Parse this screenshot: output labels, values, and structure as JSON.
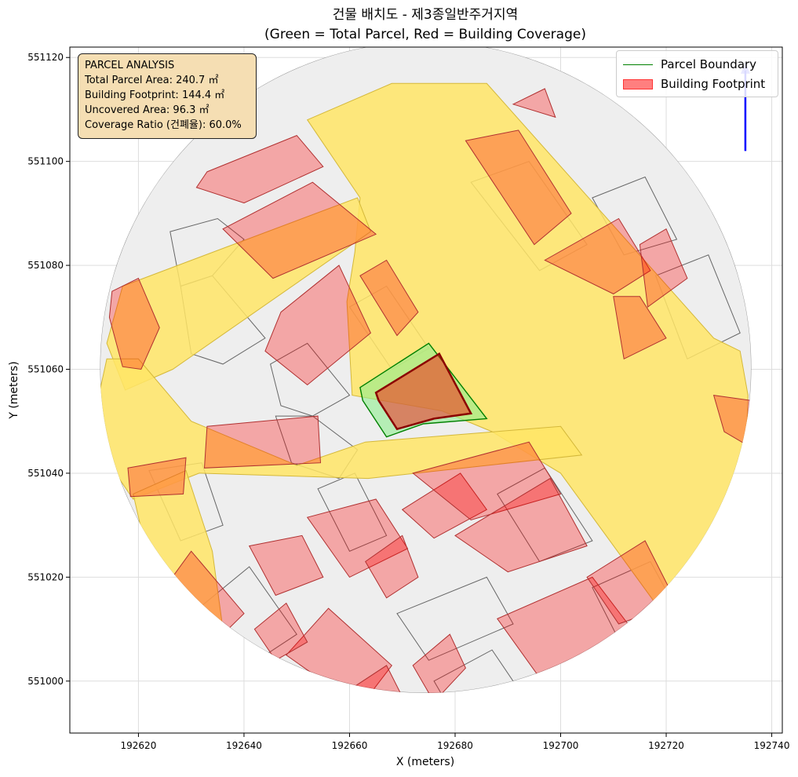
{
  "chart_data": {
    "type": "map",
    "title_line1": "건물 배치도 - 제3종일반주거지역",
    "title_line2": "(Green = Total Parcel, Red = Building Coverage)",
    "xlabel": "X (meters)",
    "ylabel": "Y (meters)",
    "xlim": [
      192607,
      192742
    ],
    "ylim": [
      550990,
      551122
    ],
    "xticks": [
      192620,
      192640,
      192660,
      192680,
      192700,
      192720,
      192740
    ],
    "yticks": [
      551000,
      551020,
      551040,
      551060,
      551080,
      551100,
      551120
    ],
    "grid": true,
    "legend": {
      "placement": "top-right",
      "entries": [
        "Parcel Boundary",
        "Building Footprint"
      ]
    },
    "info_box": {
      "line1": "PARCEL ANALYSIS",
      "line2": "Total Parcel Area: 240.7 ㎡",
      "line3": "Building Footprint: 144.4 ㎡",
      "line4": "Uncovered Area: 96.3 ㎡",
      "line5": "Coverage Ratio (건폐율): 60.0%"
    },
    "colors": {
      "parcel": "#008000",
      "parcel_fill": "#90ee90",
      "building": "#ff0000",
      "building_edge": "#8b0000",
      "road": "#ffe566",
      "background_parcel": "#eeeeee",
      "north_arrow": "#0000ff"
    },
    "target_parcel": [
      [
        192662,
        551056.5
      ],
      [
        192675,
        551065
      ],
      [
        192686,
        551050.5
      ],
      [
        192674,
        551049.5
      ],
      [
        192667,
        551047
      ],
      [
        192662.5,
        551054
      ]
    ],
    "target_building": [
      [
        192665,
        551055.5
      ],
      [
        192677,
        551063
      ],
      [
        192683,
        551051.5
      ],
      [
        192676,
        551050.5
      ],
      [
        192669,
        551048.5
      ],
      [
        192665.5,
        551054
      ]
    ],
    "roads": [
      [
        [
          192652,
          551108
        ],
        [
          192668,
          551115
        ],
        [
          192686,
          551115
        ],
        [
          192729,
          551066
        ],
        [
          192734,
          551063.5
        ],
        [
          192735.5,
          551055
        ],
        [
          192735,
          551040
        ],
        [
          192733,
          551032
        ],
        [
          192728,
          551022
        ],
        [
          192719,
          551013.5
        ],
        [
          192700,
          551040
        ],
        [
          192687,
          551048
        ],
        [
          192677.5,
          551052
        ],
        [
          192660.5,
          551055
        ],
        [
          192659.5,
          551073
        ],
        [
          192661,
          551082.5
        ],
        [
          192662,
          551093
        ]
      ],
      [
        [
          192617,
          551076
        ],
        [
          192661.5,
          551093
        ],
        [
          192664,
          551086.5
        ],
        [
          192626.5,
          551060
        ],
        [
          192617.5,
          551056
        ],
        [
          192614,
          551065
        ]
      ],
      [
        [
          192663,
          551046
        ],
        [
          192700,
          551049
        ],
        [
          192704,
          551043.5
        ],
        [
          192663.5,
          551039
        ],
        [
          192631.5,
          551040
        ],
        [
          192619,
          551035
        ],
        [
          192615,
          551041
        ],
        [
          192612.5,
          551055
        ],
        [
          192614,
          551062
        ],
        [
          192620,
          551062
        ],
        [
          192630,
          551050
        ],
        [
          192650,
          551041.5
        ]
      ],
      [
        [
          192619,
          551036
        ],
        [
          192629,
          551040.5
        ],
        [
          192634,
          551025
        ],
        [
          192636,
          551010
        ],
        [
          192635,
          551005
        ],
        [
          192628,
          551010
        ],
        [
          192621.5,
          551025
        ]
      ]
    ],
    "buildings": [
      [
        [
          192633,
          551098
        ],
        [
          192650,
          551105
        ],
        [
          192655,
          551099
        ],
        [
          192640,
          551092
        ],
        [
          192631,
          551095
        ]
      ],
      [
        [
          192636,
          551087
        ],
        [
          192653,
          551096
        ],
        [
          192665,
          551086
        ],
        [
          192645.5,
          551077.5
        ]
      ],
      [
        [
          192615,
          551075
        ],
        [
          192620,
          551077.5
        ],
        [
          192624,
          551068
        ],
        [
          192620.5,
          551060
        ],
        [
          192617,
          551060.5
        ],
        [
          192614.5,
          551070
        ]
      ],
      [
        [
          192647,
          551071
        ],
        [
          192658,
          551080
        ],
        [
          192664,
          551067
        ],
        [
          192652,
          551057
        ],
        [
          192644,
          551063.5
        ]
      ],
      [
        [
          192662,
          551078
        ],
        [
          192667,
          551081
        ],
        [
          192673,
          551071
        ],
        [
          192669,
          551066.5
        ]
      ],
      [
        [
          192682,
          551104
        ],
        [
          192692,
          551106
        ],
        [
          192702,
          551090
        ],
        [
          192695,
          551084
        ]
      ],
      [
        [
          192691,
          551111
        ],
        [
          192697,
          551114
        ],
        [
          192699,
          551108.5
        ]
      ],
      [
        [
          192697,
          551081
        ],
        [
          192711,
          551089
        ],
        [
          192717,
          551079
        ],
        [
          192710,
          551074.5
        ]
      ],
      [
        [
          192710,
          551074
        ],
        [
          192715,
          551074
        ],
        [
          192720,
          551066
        ],
        [
          192712,
          551062
        ]
      ],
      [
        [
          192715,
          551084
        ],
        [
          192720,
          551087
        ],
        [
          192724,
          551077.5
        ],
        [
          192716.5,
          551072
        ]
      ],
      [
        [
          192729,
          551055
        ],
        [
          192736,
          551054
        ],
        [
          192736,
          551045
        ],
        [
          192731,
          551048
        ]
      ],
      [
        [
          192618,
          551041
        ],
        [
          192629,
          551043
        ],
        [
          192628.5,
          551036
        ],
        [
          192618.5,
          551035.5
        ]
      ],
      [
        [
          192633,
          551049
        ],
        [
          192654,
          551051
        ],
        [
          192654.5,
          551042
        ],
        [
          192632.5,
          551041
        ]
      ],
      [
        [
          192652,
          551031.5
        ],
        [
          192665,
          551035
        ],
        [
          192671,
          551025.5
        ],
        [
          192660,
          551020
        ]
      ],
      [
        [
          192648,
          551005
        ],
        [
          192656,
          551014
        ],
        [
          192668,
          551003
        ],
        [
          192662,
          550995
        ]
      ],
      [
        [
          192663,
          551023
        ],
        [
          192670,
          551028
        ],
        [
          192673,
          551020
        ],
        [
          192667,
          551016
        ]
      ],
      [
        [
          192670,
          551033
        ],
        [
          192681,
          551040
        ],
        [
          192686,
          551033
        ],
        [
          192676,
          551027.5
        ]
      ],
      [
        [
          192672,
          551040
        ],
        [
          192694,
          551046
        ],
        [
          192700,
          551036
        ],
        [
          192683,
          551031
        ]
      ],
      [
        [
          192680,
          551028
        ],
        [
          192698,
          551039
        ],
        [
          192705,
          551026
        ],
        [
          192690,
          551021
        ]
      ],
      [
        [
          192688,
          551012
        ],
        [
          192706,
          551020
        ],
        [
          192715,
          551008
        ],
        [
          192700,
          550995
        ]
      ],
      [
        [
          192705,
          551020
        ],
        [
          192716,
          551027
        ],
        [
          192722,
          551015
        ],
        [
          192711,
          551011
        ]
      ],
      [
        [
          192625,
          551018
        ],
        [
          192630,
          551025
        ],
        [
          192640,
          551013
        ],
        [
          192632,
          551005
        ]
      ],
      [
        [
          192641,
          551026
        ],
        [
          192651,
          551028
        ],
        [
          192655,
          551020
        ],
        [
          192646,
          551016.5
        ]
      ],
      [
        [
          192642,
          551010
        ],
        [
          192648,
          551015
        ],
        [
          192652,
          551007.5
        ],
        [
          192646,
          551004
        ]
      ],
      [
        [
          192672,
          551003
        ],
        [
          192679,
          551009
        ],
        [
          192682,
          551002.5
        ],
        [
          192676,
          550996
        ]
      ],
      [
        [
          192661,
          550999
        ],
        [
          192667,
          551003
        ],
        [
          192670,
          550997
        ],
        [
          192664.5,
          550993
        ]
      ]
    ],
    "parcels": [
      [
        [
          192626,
          551086.5
        ],
        [
          192635,
          551089
        ],
        [
          192640,
          551085
        ],
        [
          192634,
          551078
        ],
        [
          192628,
          551076
        ]
      ],
      [
        [
          192628,
          551076
        ],
        [
          192634,
          551078
        ],
        [
          192644,
          551066
        ],
        [
          192636,
          551061
        ],
        [
          192630,
          551063
        ]
      ],
      [
        [
          192645,
          551061
        ],
        [
          192652,
          551065
        ],
        [
          192660,
          551055
        ],
        [
          192653,
          551051
        ],
        [
          192647,
          551053
        ]
      ],
      [
        [
          192646,
          551051
        ],
        [
          192653,
          551051
        ],
        [
          192661.5,
          551044.5
        ],
        [
          192658,
          551039
        ],
        [
          192649,
          551042
        ]
      ],
      [
        [
          192660,
          551072
        ],
        [
          192667,
          551076
        ],
        [
          192675,
          551064
        ],
        [
          192668,
          551060
        ]
      ],
      [
        [
          192683,
          551096
        ],
        [
          192694,
          551100
        ],
        [
          192705,
          551084
        ],
        [
          192696,
          551079
        ]
      ],
      [
        [
          192706,
          551093
        ],
        [
          192716,
          551097
        ],
        [
          192722,
          551085
        ],
        [
          192712,
          551082
        ]
      ],
      [
        [
          192718,
          551078
        ],
        [
          192728,
          551082
        ],
        [
          192734,
          551067
        ],
        [
          192724,
          551062
        ]
      ],
      [
        [
          192622,
          551040.5
        ],
        [
          192632,
          551042
        ],
        [
          192636,
          551030
        ],
        [
          192628,
          551027
        ]
      ],
      [
        [
          192629,
          551012
        ],
        [
          192641,
          551022
        ],
        [
          192650,
          551009
        ],
        [
          192638,
          551001
        ]
      ],
      [
        [
          192654,
          551037
        ],
        [
          192661,
          551040
        ],
        [
          192667,
          551028
        ],
        [
          192660,
          551025
        ]
      ],
      [
        [
          192669,
          551013
        ],
        [
          192686,
          551020
        ],
        [
          192691,
          551011
        ],
        [
          192675,
          551004
        ]
      ],
      [
        [
          192688,
          551036
        ],
        [
          192697,
          551041
        ],
        [
          192706,
          551027
        ],
        [
          192696,
          551023
        ]
      ],
      [
        [
          192676,
          551000
        ],
        [
          192687,
          551006
        ],
        [
          192693,
          550997
        ],
        [
          192680,
          550993
        ]
      ],
      [
        [
          192706,
          551018
        ],
        [
          192717,
          551023
        ],
        [
          192724,
          551010
        ],
        [
          192712,
          551006
        ]
      ]
    ],
    "north_arrow": {
      "x": 192735,
      "y0": 551102,
      "y1": 551119
    }
  }
}
